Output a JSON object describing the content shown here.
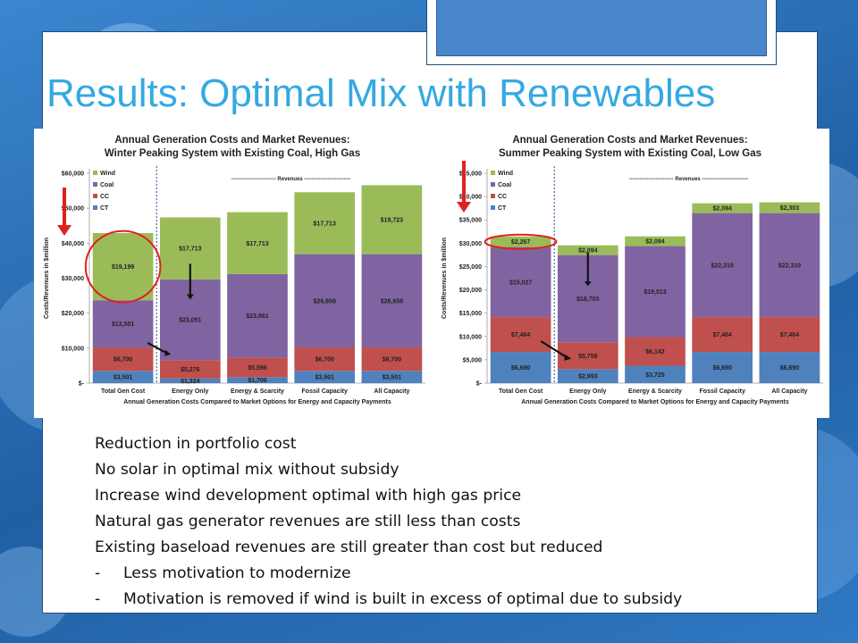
{
  "slide": {
    "title": "Results: Optimal Mix with Renewables",
    "bullets": [
      "Reduction in portfolio cost",
      "No solar in optimal mix without subsidy",
      "Increase wind development optimal with high gas price",
      "Natural gas generator revenues are still less than costs",
      "Existing baseload revenues are still greater than cost but reduced"
    ],
    "sub_bullets": [
      "Less motivation to modernize",
      "Motivation is removed if wind is built in excess of optimal due to subsidy"
    ],
    "sub_bullet_marker": "-"
  },
  "chart_data": [
    {
      "type": "bar",
      "stacked": true,
      "title": "Annual Generation Costs and Market Revenues:",
      "subtitle": "Winter Peaking System with Existing Coal, High Gas",
      "xlabel": "Annual Generation Costs Compared to Market Options for Energy and Capacity Payments",
      "ylabel": "Costs/Revenues in $million",
      "revenues_label": "------------------------- Revenues --------------------------",
      "categories": [
        "Total Gen Cost",
        "Energy Only",
        "Energy & Scarcity",
        "Fossil Capacity",
        "All Capacity"
      ],
      "ylim": [
        0,
        60000
      ],
      "yticks": [
        0,
        10000,
        20000,
        30000,
        40000,
        50000,
        60000
      ],
      "ytick_labels": [
        "$-",
        "$10,000",
        "$20,000",
        "$30,000",
        "$40,000",
        "$50,000",
        "$60,000"
      ],
      "legend": [
        "Wind",
        "Coal",
        "CC",
        "CT"
      ],
      "legend_position": "top-left",
      "series": [
        {
          "name": "CT",
          "color": "#4f81bd",
          "values": [
            3501,
            1324,
            1706,
            3501,
            3501
          ],
          "labels": [
            "$3,501",
            "$1,324",
            "$1,706",
            "$3,501",
            "$3,501"
          ]
        },
        {
          "name": "CC",
          "color": "#c0504d",
          "values": [
            6700,
            5276,
            5596,
            6700,
            6700
          ],
          "labels": [
            "$6,700",
            "$5,276",
            "$5,596",
            "$6,700",
            "$6,700"
          ]
        },
        {
          "name": "Coal",
          "color": "#8064a2",
          "values": [
            13501,
            23051,
            23861,
            26658,
            26658
          ],
          "labels": [
            "$13,501",
            "$23,051",
            "$23,861",
            "$26,658",
            "$26,658"
          ]
        },
        {
          "name": "Wind",
          "color": "#9bbb59",
          "values": [
            19199,
            17713,
            17713,
            17713,
            19723
          ],
          "labels": [
            "$19,199",
            "$17,713",
            "$17,713",
            "$17,713",
            "$19,723"
          ]
        }
      ]
    },
    {
      "type": "bar",
      "stacked": true,
      "title": "Annual Generation Costs and Market Revenues:",
      "subtitle": "Summer Peaking System with Existing Coal, Low Gas",
      "xlabel": "Annual Generation Costs Compared to Market Options for Energy and Capacity Payments",
      "ylabel": "Costs/Revenues in $million",
      "revenues_label": "------------------------- Revenues --------------------------",
      "categories": [
        "Total Gen Cost",
        "Energy Only",
        "Energy & Scarcity",
        "Fossil Capacity",
        "All Capacity"
      ],
      "ylim": [
        0,
        45000
      ],
      "yticks": [
        0,
        5000,
        10000,
        15000,
        20000,
        25000,
        30000,
        35000,
        40000,
        45000
      ],
      "ytick_labels": [
        "$-",
        "$5,000",
        "$10,000",
        "$15,000",
        "$20,000",
        "$25,000",
        "$30,000",
        "$35,000",
        "$40,000",
        "$45,000"
      ],
      "legend": [
        "Wind",
        "Coal",
        "CC",
        "CT"
      ],
      "legend_position": "top-left",
      "series": [
        {
          "name": "CT",
          "color": "#4f81bd",
          "values": [
            6690,
            2993,
            3725,
            6690,
            6690
          ],
          "labels": [
            "$6,690",
            "$2,993",
            "$3,725",
            "$6,690",
            "$6,690"
          ]
        },
        {
          "name": "CC",
          "color": "#c0504d",
          "values": [
            7464,
            5759,
            6142,
            7464,
            7464
          ],
          "labels": [
            "$7,464",
            "$5,759",
            "$6,142",
            "$7,464",
            "$7,464"
          ]
        },
        {
          "name": "Coal",
          "color": "#8064a2",
          "values": [
            15027,
            18703,
            19513,
            22310,
            22310
          ],
          "labels": [
            "$15,027",
            "$18,703",
            "$19,513",
            "$22,310",
            "$22,310"
          ]
        },
        {
          "name": "Wind",
          "color": "#9bbb59",
          "values": [
            2267,
            2094,
            2094,
            2094,
            2303
          ],
          "labels": [
            "$2,267",
            "$2,094",
            "$2,094",
            "$2,094",
            "$2,303"
          ]
        }
      ]
    }
  ]
}
